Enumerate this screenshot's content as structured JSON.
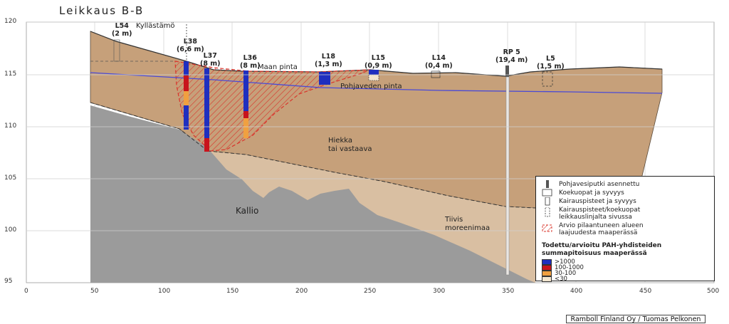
{
  "title": "Leikkaus B-B",
  "credit": "Ramboll Finland Oy / Tuomas Pelkonen",
  "axes": {
    "y_ticks": [
      "120",
      "115",
      "110",
      "105",
      "100",
      "95"
    ],
    "x_ticks": [
      "0",
      "50",
      "100",
      "150",
      "200",
      "250",
      "300",
      "350",
      "400",
      "450",
      "500"
    ]
  },
  "labels": {
    "kyllastamo": "Kyllästämö",
    "maan_pinta": "Maan pinta",
    "pohjaveden_pinta": "Pohjaveden pinta",
    "hiekka": "Hiekka",
    "tai_vastaava": "tai vastaava",
    "kallio": "Kallio",
    "tiivis": "Tiivis",
    "moreenimaa": "moreenimaa"
  },
  "points": [
    {
      "id": "L54",
      "depth": "(2 m)"
    },
    {
      "id": "L38",
      "depth": "(6,6 m)"
    },
    {
      "id": "L37",
      "depth": "(8 m)"
    },
    {
      "id": "L36",
      "depth": "(8 m)"
    },
    {
      "id": "L18",
      "depth": "(1,3 m)"
    },
    {
      "id": "L15",
      "depth": "(0,9 m)"
    },
    {
      "id": "L14",
      "depth": "(0,4 m)"
    },
    {
      "id": "RP 5",
      "depth": "(19,4 m)"
    },
    {
      "id": "L5",
      "depth": "(1,5 m)"
    }
  ],
  "legend": {
    "items": [
      "Pohjavesiputki asennettu",
      "Koekuopat ja syvyys",
      "Kairauspisteet ja syvyys",
      "Kairauspisteet/koekuopat",
      "leikkauslinjalta sivussa",
      "Arvio pilaantuneen alueen",
      "laajuudesta maaperässä"
    ],
    "heading": [
      "Todettu/arvioitu PAH-yhdisteiden",
      "summapitoisuus maaperässä"
    ],
    "classes": [
      {
        "label": ">1000",
        "color": "#1f2fbf"
      },
      {
        "label": "100-1000",
        "color": "#c8141c"
      },
      {
        "label": "30-100",
        "color": "#f0a040"
      },
      {
        "label": "<30",
        "color": "#f3e6cf"
      }
    ]
  },
  "colors": {
    "sand": "#c6a07a",
    "bedrock": "#9b9b9b",
    "moraine": "#d9bfa2",
    "water_line": "#4a4ad6",
    "contamination": "#d9342b"
  }
}
